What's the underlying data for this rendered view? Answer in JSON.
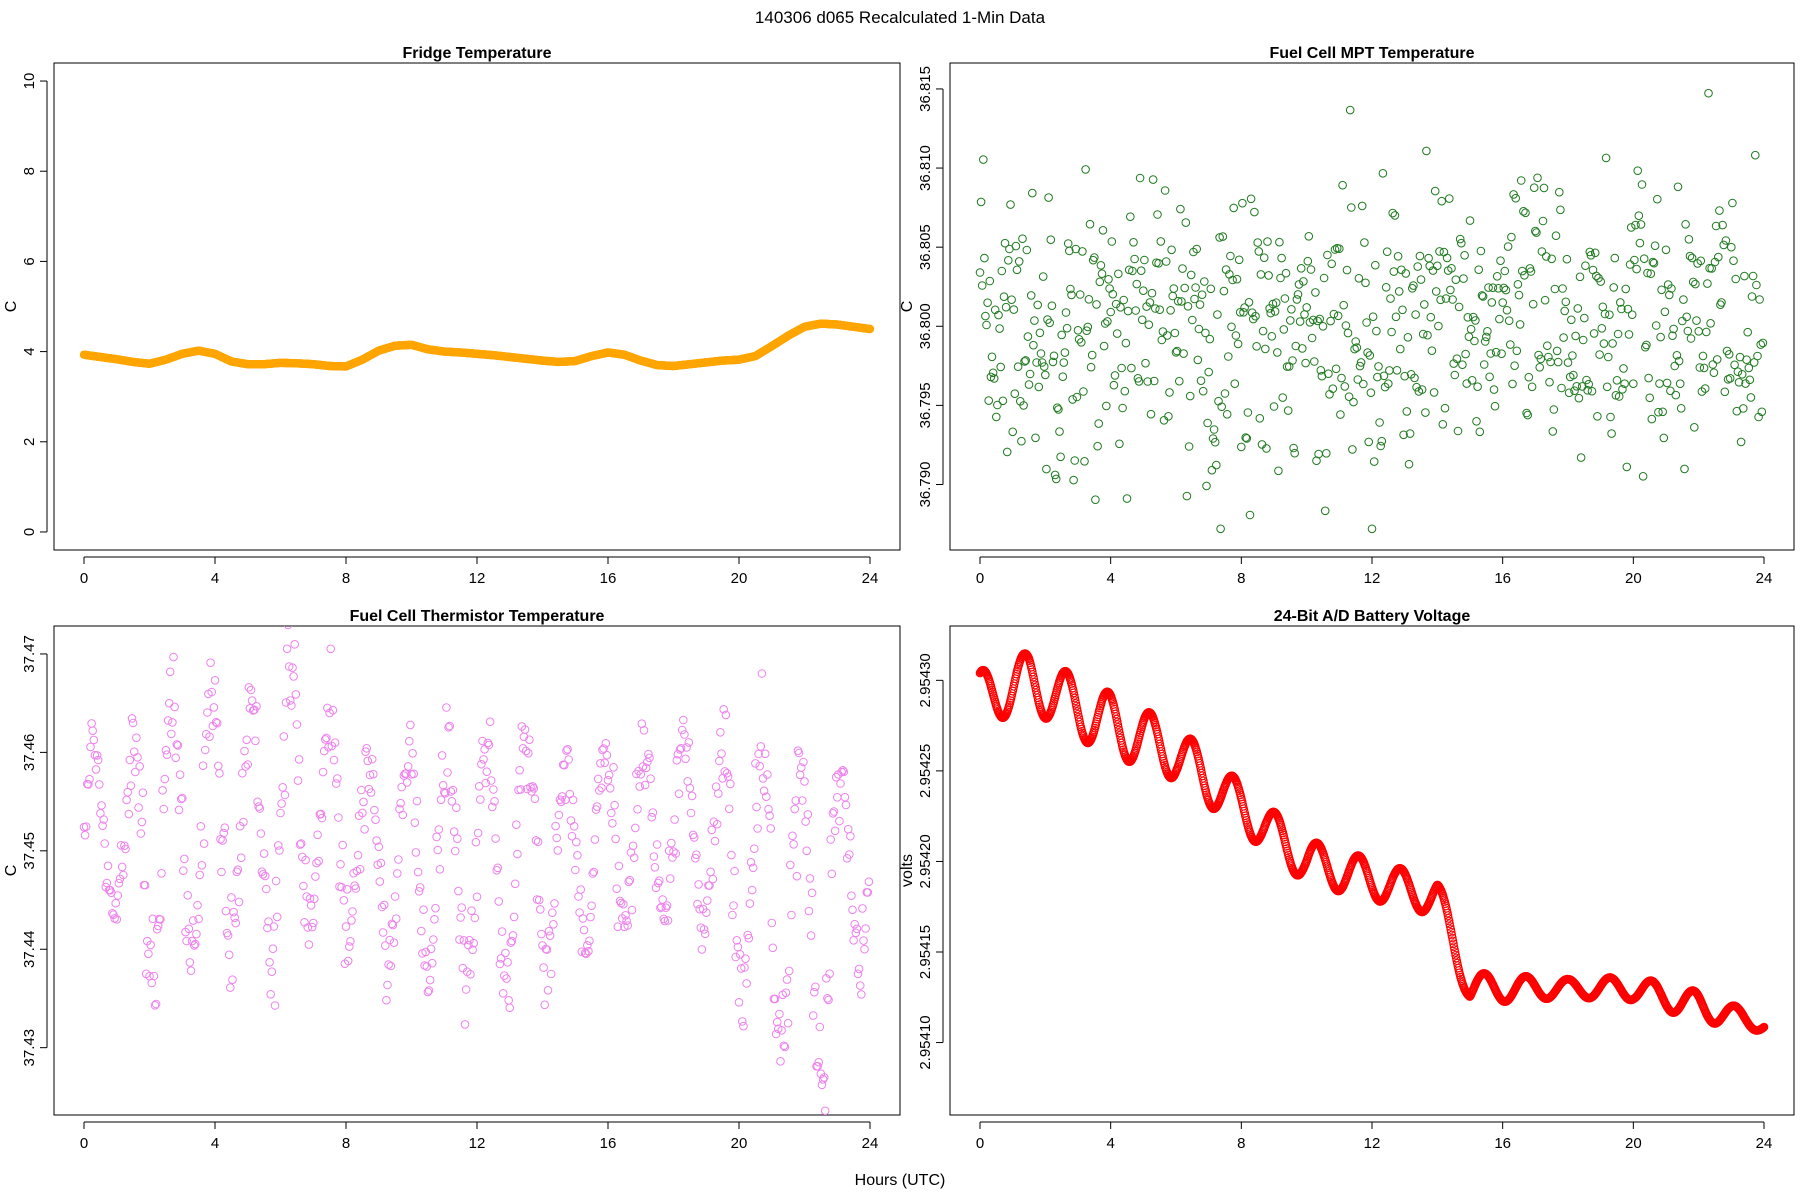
{
  "figure": {
    "title": "140306   d065   Recalculated 1-Min Data",
    "xlabel": "Hours (UTC)"
  },
  "chart_data": [
    {
      "type": "line",
      "title": "Fridge Temperature",
      "ylabel": "C",
      "xlabel": "",
      "xlim": [
        0,
        24
      ],
      "ylim": [
        0,
        10
      ],
      "xticks": [
        0,
        4,
        8,
        12,
        16,
        20,
        24
      ],
      "yticks": [
        "0",
        "2",
        "4",
        "6",
        "8",
        "10"
      ],
      "color": "#ffa500",
      "marker": "filled-circle",
      "series": [
        {
          "x": [
            0,
            0.5,
            1,
            1.5,
            2,
            2.5,
            3,
            3.5,
            4,
            4.5,
            5,
            5.5,
            6,
            6.5,
            7,
            7.5,
            8,
            8.5,
            9,
            9.5,
            10,
            10.5,
            11,
            11.5,
            12,
            12.5,
            13,
            13.5,
            14,
            14.5,
            15,
            15.5,
            16,
            16.5,
            17,
            17.5,
            18,
            18.5,
            19,
            19.5,
            20,
            20.5,
            21,
            21.5,
            22,
            22.5,
            23,
            23.5,
            24
          ],
          "values": [
            3.93,
            3.88,
            3.83,
            3.77,
            3.73,
            3.82,
            3.95,
            4.02,
            3.95,
            3.78,
            3.72,
            3.72,
            3.75,
            3.74,
            3.72,
            3.68,
            3.67,
            3.82,
            4.02,
            4.13,
            4.15,
            4.05,
            4.0,
            3.98,
            3.95,
            3.92,
            3.88,
            3.84,
            3.8,
            3.77,
            3.79,
            3.9,
            3.98,
            3.93,
            3.8,
            3.7,
            3.68,
            3.72,
            3.76,
            3.8,
            3.82,
            3.9,
            4.12,
            4.35,
            4.55,
            4.62,
            4.6,
            4.55,
            4.5
          ]
        }
      ]
    },
    {
      "type": "scatter",
      "title": "Fuel Cell MPT Temperature",
      "ylabel": "C",
      "xlabel": "",
      "xlim": [
        0,
        24
      ],
      "ylim": [
        36.787,
        36.8155
      ],
      "xticks": [
        0,
        4,
        8,
        12,
        16,
        20,
        24
      ],
      "yticks": [
        "36.790",
        "36.795",
        "36.800",
        "36.805",
        "36.810",
        "36.815"
      ],
      "color": "#1f7a1f",
      "marker": "open-circle",
      "series": [
        {
          "generator": "noise",
          "n": 1440,
          "center": 36.8,
          "spread": 0.0045,
          "min": 36.7872,
          "max": 36.8155
        }
      ]
    },
    {
      "type": "scatter",
      "title": "Fuel Cell Thermistor Temperature",
      "ylabel": "C",
      "xlabel": "",
      "xlim": [
        0,
        24
      ],
      "ylim": [
        37.425,
        37.471
      ],
      "xticks": [
        0,
        4,
        8,
        12,
        16,
        20,
        24
      ],
      "yticks": [
        "37.43",
        "37.44",
        "37.45",
        "37.46",
        "37.47"
      ],
      "color": "#ee82ee",
      "marker": "open-circle",
      "series": [
        {
          "generator": "oscillation",
          "n": 1440,
          "period_hours": 1.2,
          "cycles": [
            {
              "center": 37.452,
              "amp": 0.008
            },
            {
              "center": 37.45,
              "amp": 0.012
            },
            {
              "center": 37.452,
              "amp": 0.012
            },
            {
              "center": 37.453,
              "amp": 0.013
            },
            {
              "center": 37.452,
              "amp": 0.012
            },
            {
              "center": 37.455,
              "amp": 0.013
            },
            {
              "center": 37.452,
              "amp": 0.012
            },
            {
              "center": 37.449,
              "amp": 0.01
            },
            {
              "center": 37.449,
              "amp": 0.011
            },
            {
              "center": 37.449,
              "amp": 0.012
            },
            {
              "center": 37.449,
              "amp": 0.012
            },
            {
              "center": 37.45,
              "amp": 0.011
            },
            {
              "center": 37.45,
              "amp": 0.009
            },
            {
              "center": 37.451,
              "amp": 0.008
            },
            {
              "center": 37.452,
              "amp": 0.009
            },
            {
              "center": 37.452,
              "amp": 0.009
            },
            {
              "center": 37.449,
              "amp": 0.012
            },
            {
              "center": 37.445,
              "amp": 0.016
            },
            {
              "center": 37.443,
              "amp": 0.016
            },
            {
              "center": 37.448,
              "amp": 0.01
            }
          ]
        }
      ]
    },
    {
      "type": "scatter",
      "title": "24-Bit A/D Battery Voltage",
      "ylabel": "volts",
      "xlabel": "",
      "xlim": [
        0,
        24
      ],
      "ylim": [
        2.95407,
        2.95432
      ],
      "xticks": [
        0,
        4,
        8,
        12,
        16,
        20,
        24
      ],
      "yticks": [
        "2.95410",
        "2.95415",
        "2.95420",
        "2.95425",
        "2.95430"
      ],
      "color": "#ff0000",
      "marker": "open-circle",
      "series": [
        {
          "generator": "oscillation",
          "n": 1440,
          "period_hours": 1.28,
          "mean": [
            [
              0,
              2.95429
            ],
            [
              1.5,
              2.9543
            ],
            [
              3.5,
              2.95428
            ],
            [
              6,
              2.95426
            ],
            [
              8,
              2.95423
            ],
            [
              10,
              2.9542
            ],
            [
              14,
              2.95418
            ],
            [
              15,
              2.95413
            ],
            [
              17.5,
              2.95413
            ],
            [
              20,
              2.95413
            ],
            [
              22,
              2.95412
            ],
            [
              24,
              2.95411
            ]
          ],
          "amplitude": [
            [
              0,
              1.5e-05
            ],
            [
              4,
              1.7e-05
            ],
            [
              8,
              1.3e-05
            ],
            [
              14,
              1e-05
            ],
            [
              18,
              5e-06
            ],
            [
              22,
              8e-06
            ],
            [
              24,
              4e-06
            ]
          ]
        }
      ]
    }
  ]
}
